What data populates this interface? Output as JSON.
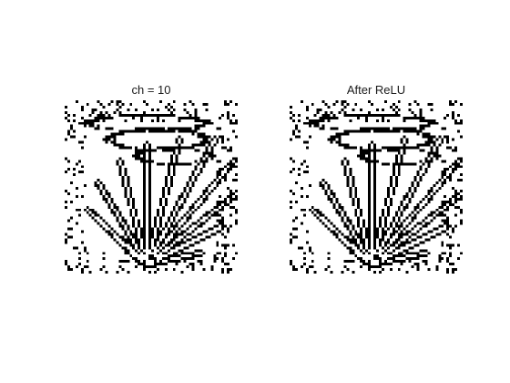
{
  "figure": {
    "panels": [
      {
        "title": "ch = 10",
        "colormap": "gray",
        "image": "binary feature map of a plant leaf with veins"
      },
      {
        "title": "After ReLU",
        "colormap": "gray",
        "image": "binary feature map of a plant leaf with veins after ReLU"
      }
    ],
    "colors": {
      "background": "#ffffff",
      "pixel_on": "#000000",
      "pixel_off": "#ffffff"
    }
  }
}
